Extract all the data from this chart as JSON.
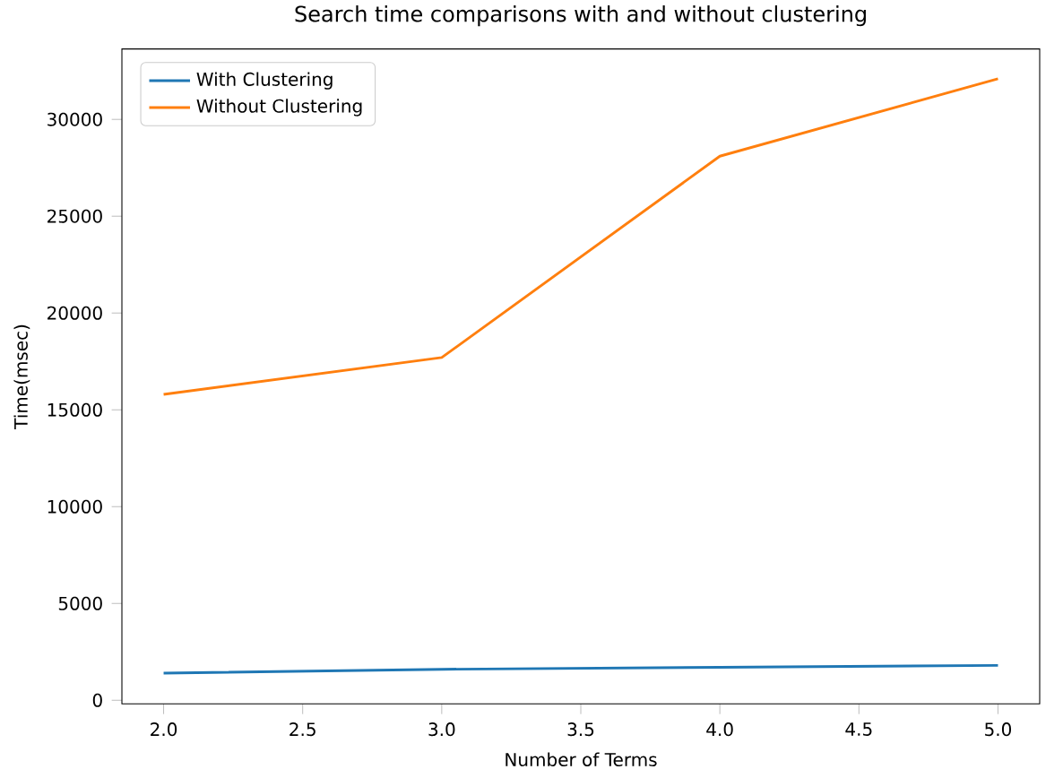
{
  "chart_data": {
    "type": "line",
    "title": "Search time comparisons with and without clustering",
    "xlabel": "Number of Terms",
    "ylabel": "Time(msec)",
    "x": [
      2,
      3,
      4,
      5
    ],
    "series": [
      {
        "name": "With Clustering",
        "color": "#1f77b4",
        "values": [
          1400,
          1600,
          1700,
          1800
        ]
      },
      {
        "name": "Without Clustering",
        "color": "#ff7f0e",
        "values": [
          15800,
          17700,
          28100,
          32100
        ]
      }
    ],
    "xlim": [
      1.85,
      5.15
    ],
    "ylim": [
      -187,
      33637
    ],
    "xticks": [
      {
        "value": 2,
        "label": "2.0"
      },
      {
        "value": 2.5,
        "label": "2.5"
      },
      {
        "value": 3,
        "label": "3.0"
      },
      {
        "value": 3.5,
        "label": "3.5"
      },
      {
        "value": 4,
        "label": "4.0"
      },
      {
        "value": 4.5,
        "label": "4.5"
      },
      {
        "value": 5,
        "label": "5.0"
      }
    ],
    "yticks": [
      0,
      5000,
      10000,
      15000,
      20000,
      25000,
      30000
    ],
    "legend": "top left",
    "grid": false,
    "marker": "none",
    "line_style": "solid"
  }
}
